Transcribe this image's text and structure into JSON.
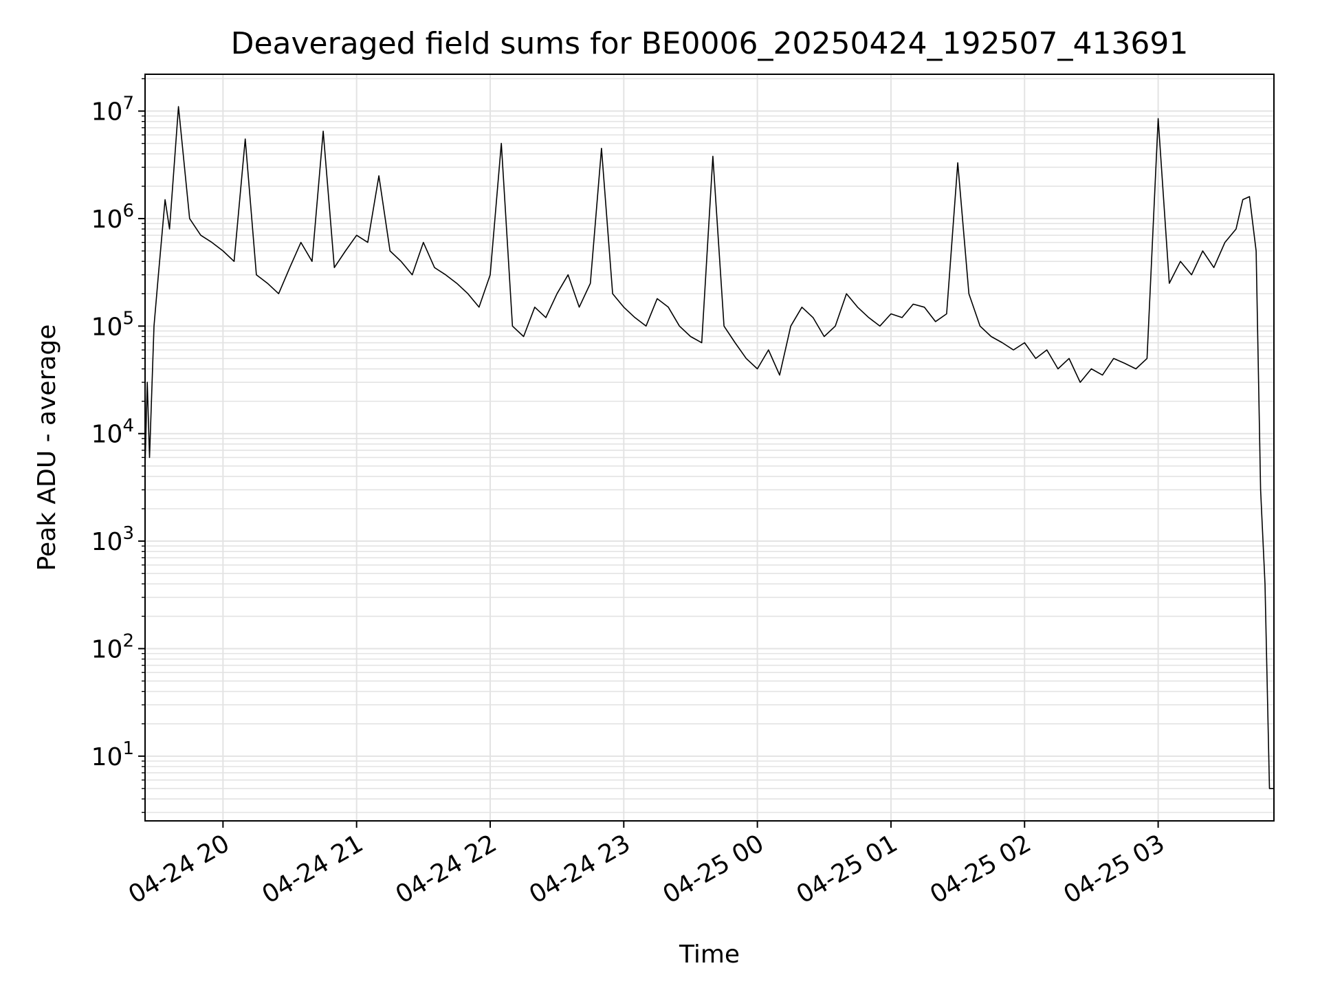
{
  "chart_data": {
    "type": "line",
    "title": "Deaveraged field sums for BE0006_20250424_192507_413691",
    "xlabel": "Time",
    "ylabel": "Peak ADU - average",
    "xlim": [
      "2025-04-24 19:25",
      "2025-04-25 03:52"
    ],
    "ylim": [
      2.5,
      22000000
    ],
    "yscale": "log",
    "grid": true,
    "grid_color": "#e3e3e3",
    "line_color": "#000000",
    "x_ticks": [
      {
        "time": "2025-04-24 20:00",
        "label": "04-24 20"
      },
      {
        "time": "2025-04-24 21:00",
        "label": "04-24 21"
      },
      {
        "time": "2025-04-24 22:00",
        "label": "04-24 22"
      },
      {
        "time": "2025-04-24 23:00",
        "label": "04-24 23"
      },
      {
        "time": "2025-04-25 00:00",
        "label": "04-25 00"
      },
      {
        "time": "2025-04-25 01:00",
        "label": "04-25 01"
      },
      {
        "time": "2025-04-25 02:00",
        "label": "04-25 02"
      },
      {
        "time": "2025-04-25 03:00",
        "label": "04-25 03"
      }
    ],
    "y_ticks": [
      {
        "value": 10,
        "base": "10",
        "exp": "1"
      },
      {
        "value": 100,
        "base": "10",
        "exp": "2"
      },
      {
        "value": 1000,
        "base": "10",
        "exp": "3"
      },
      {
        "value": 10000,
        "base": "10",
        "exp": "4"
      },
      {
        "value": 100000,
        "base": "10",
        "exp": "5"
      },
      {
        "value": 1000000,
        "base": "10",
        "exp": "6"
      },
      {
        "value": 10000000,
        "base": "10",
        "exp": "7"
      }
    ],
    "series": [
      {
        "x": [
          "2025-04-24 19:25",
          "2025-04-24 19:26",
          "2025-04-24 19:27",
          "2025-04-24 19:29",
          "2025-04-24 19:31",
          "2025-04-24 19:34",
          "2025-04-24 19:36",
          "2025-04-24 19:40",
          "2025-04-24 19:45",
          "2025-04-24 19:50",
          "2025-04-24 19:55",
          "2025-04-24 20:00",
          "2025-04-24 20:05",
          "2025-04-24 20:10",
          "2025-04-24 20:15",
          "2025-04-24 20:20",
          "2025-04-24 20:25",
          "2025-04-24 20:30",
          "2025-04-24 20:35",
          "2025-04-24 20:40",
          "2025-04-24 20:45",
          "2025-04-24 20:50",
          "2025-04-24 20:55",
          "2025-04-24 21:00",
          "2025-04-24 21:05",
          "2025-04-24 21:10",
          "2025-04-24 21:15",
          "2025-04-24 21:20",
          "2025-04-24 21:25",
          "2025-04-24 21:30",
          "2025-04-24 21:35",
          "2025-04-24 21:40",
          "2025-04-24 21:45",
          "2025-04-24 21:50",
          "2025-04-24 21:55",
          "2025-04-24 22:00",
          "2025-04-24 22:05",
          "2025-04-24 22:10",
          "2025-04-24 22:15",
          "2025-04-24 22:20",
          "2025-04-24 22:25",
          "2025-04-24 22:30",
          "2025-04-24 22:35",
          "2025-04-24 22:40",
          "2025-04-24 22:45",
          "2025-04-24 22:50",
          "2025-04-24 22:55",
          "2025-04-24 23:00",
          "2025-04-24 23:05",
          "2025-04-24 23:10",
          "2025-04-24 23:15",
          "2025-04-24 23:20",
          "2025-04-24 23:25",
          "2025-04-24 23:30",
          "2025-04-24 23:35",
          "2025-04-24 23:40",
          "2025-04-24 23:45",
          "2025-04-24 23:50",
          "2025-04-24 23:55",
          "2025-04-25 00:00",
          "2025-04-25 00:05",
          "2025-04-25 00:10",
          "2025-04-25 00:15",
          "2025-04-25 00:20",
          "2025-04-25 00:25",
          "2025-04-25 00:30",
          "2025-04-25 00:35",
          "2025-04-25 00:40",
          "2025-04-25 00:45",
          "2025-04-25 00:50",
          "2025-04-25 00:55",
          "2025-04-25 01:00",
          "2025-04-25 01:05",
          "2025-04-25 01:10",
          "2025-04-25 01:15",
          "2025-04-25 01:20",
          "2025-04-25 01:25",
          "2025-04-25 01:30",
          "2025-04-25 01:35",
          "2025-04-25 01:40",
          "2025-04-25 01:45",
          "2025-04-25 01:50",
          "2025-04-25 01:55",
          "2025-04-25 02:00",
          "2025-04-25 02:05",
          "2025-04-25 02:10",
          "2025-04-25 02:15",
          "2025-04-25 02:20",
          "2025-04-25 02:25",
          "2025-04-25 02:30",
          "2025-04-25 02:35",
          "2025-04-25 02:40",
          "2025-04-25 02:45",
          "2025-04-25 02:50",
          "2025-04-25 02:55",
          "2025-04-25 03:00",
          "2025-04-25 03:05",
          "2025-04-25 03:10",
          "2025-04-25 03:15",
          "2025-04-25 03:20",
          "2025-04-25 03:25",
          "2025-04-25 03:30",
          "2025-04-25 03:35",
          "2025-04-25 03:38",
          "2025-04-25 03:41",
          "2025-04-25 03:44",
          "2025-04-25 03:46",
          "2025-04-25 03:48",
          "2025-04-25 03:50",
          "2025-04-25 03:52"
        ],
        "y": [
          5000,
          30000,
          6000,
          100000,
          300000,
          1500000,
          800000,
          11000000,
          1000000,
          700000,
          600000,
          500000,
          400000,
          5500000,
          300000,
          250000,
          200000,
          350000,
          600000,
          400000,
          6500000,
          350000,
          500000,
          700000,
          600000,
          2500000,
          500000,
          400000,
          300000,
          600000,
          350000,
          300000,
          250000,
          200000,
          150000,
          300000,
          5000000,
          100000,
          80000,
          150000,
          120000,
          200000,
          300000,
          150000,
          250000,
          4500000,
          200000,
          150000,
          120000,
          100000,
          180000,
          150000,
          100000,
          80000,
          70000,
          3800000,
          100000,
          70000,
          50000,
          40000,
          60000,
          35000,
          100000,
          150000,
          120000,
          80000,
          100000,
          200000,
          150000,
          120000,
          100000,
          130000,
          120000,
          160000,
          150000,
          110000,
          130000,
          3300000,
          200000,
          100000,
          80000,
          70000,
          60000,
          70000,
          50000,
          60000,
          40000,
          50000,
          30000,
          40000,
          35000,
          50000,
          45000,
          40000,
          50000,
          8500000,
          250000,
          400000,
          300000,
          500000,
          350000,
          600000,
          800000,
          1500000,
          1600000,
          500000,
          3000,
          400,
          5,
          5
        ]
      }
    ]
  }
}
